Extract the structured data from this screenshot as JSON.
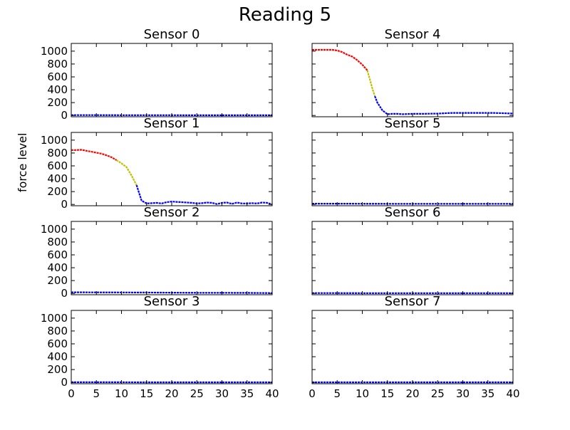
{
  "figure": {
    "title": "Reading 5",
    "ylabel": "force level"
  },
  "chart_data": [
    {
      "type": "line",
      "title": "Sensor 0",
      "xlim": [
        0,
        40
      ],
      "ylim": [
        -20,
        1120
      ],
      "yticks": [
        0,
        200,
        400,
        600,
        800,
        1000
      ],
      "xticks": [
        0,
        5,
        10,
        15,
        20,
        25,
        30,
        35,
        40
      ],
      "show_xticklabels": false,
      "show_yticklabels": true,
      "series": [
        {
          "color": "#0000ff",
          "x": [
            0,
            5,
            10,
            15,
            20,
            25,
            30,
            35,
            40
          ],
          "y": [
            5,
            5,
            4,
            4,
            4,
            3,
            3,
            3,
            3
          ]
        }
      ]
    },
    {
      "type": "line",
      "title": "Sensor 1",
      "xlim": [
        0,
        40
      ],
      "ylim": [
        -20,
        1120
      ],
      "yticks": [
        0,
        200,
        400,
        600,
        800,
        1000
      ],
      "xticks": [
        0,
        5,
        10,
        15,
        20,
        25,
        30,
        35,
        40
      ],
      "show_xticklabels": false,
      "show_yticklabels": true,
      "series": [
        {
          "color": "#ff0000",
          "x": [
            0,
            1,
            2,
            3,
            4,
            5,
            6,
            7,
            8,
            9
          ],
          "y": [
            845,
            845,
            850,
            835,
            820,
            805,
            790,
            765,
            735,
            690
          ]
        },
        {
          "color": "#bfbf00",
          "x": [
            9,
            10,
            11,
            12,
            13
          ],
          "y": [
            690,
            640,
            580,
            450,
            300
          ]
        },
        {
          "color": "#0000ff",
          "x": [
            13,
            14,
            15,
            16,
            17,
            18,
            19,
            20,
            21,
            22,
            23,
            24,
            25,
            26,
            27,
            28,
            29,
            30,
            31,
            32,
            33,
            34,
            35,
            36,
            37,
            38,
            39,
            40
          ],
          "y": [
            300,
            60,
            15,
            20,
            25,
            15,
            35,
            45,
            40,
            35,
            30,
            25,
            15,
            20,
            30,
            25,
            5,
            25,
            30,
            10,
            30,
            15,
            15,
            20,
            15,
            30,
            25,
            0
          ]
        }
      ]
    },
    {
      "type": "line",
      "title": "Sensor 2",
      "xlim": [
        0,
        40
      ],
      "ylim": [
        -20,
        1120
      ],
      "yticks": [
        0,
        200,
        400,
        600,
        800,
        1000
      ],
      "xticks": [
        0,
        5,
        10,
        15,
        20,
        25,
        30,
        35,
        40
      ],
      "show_xticklabels": false,
      "show_yticklabels": true,
      "series": [
        {
          "color": "#0000ff",
          "x": [
            0,
            5,
            10,
            15,
            20,
            25,
            30,
            35,
            40
          ],
          "y": [
            18,
            16,
            15,
            14,
            12,
            10,
            10,
            9,
            6
          ]
        }
      ]
    },
    {
      "type": "line",
      "title": "Sensor 3",
      "xlim": [
        0,
        40
      ],
      "ylim": [
        -20,
        1120
      ],
      "yticks": [
        0,
        200,
        400,
        600,
        800,
        1000
      ],
      "xticks": [
        0,
        5,
        10,
        15,
        20,
        25,
        30,
        35,
        40
      ],
      "show_xticklabels": true,
      "show_yticklabels": true,
      "series": [
        {
          "color": "#0000ff",
          "x": [
            0,
            5,
            10,
            15,
            20,
            25,
            30,
            35,
            40
          ],
          "y": [
            3,
            3,
            3,
            2,
            2,
            2,
            2,
            2,
            2
          ]
        }
      ]
    },
    {
      "type": "line",
      "title": "Sensor 4",
      "xlim": [
        0,
        40
      ],
      "ylim": [
        -20,
        1120
      ],
      "yticks": [
        0,
        200,
        400,
        600,
        800,
        1000
      ],
      "xticks": [
        0,
        5,
        10,
        15,
        20,
        25,
        30,
        35,
        40
      ],
      "show_xticklabels": false,
      "show_yticklabels": false,
      "series": [
        {
          "color": "#ff0000",
          "x": [
            0,
            1,
            2,
            3,
            4,
            5,
            6,
            7,
            8,
            9,
            10,
            11
          ],
          "y": [
            1020,
            1020,
            1020,
            1020,
            1020,
            1010,
            985,
            945,
            915,
            860,
            790,
            700
          ]
        },
        {
          "color": "#bfbf00",
          "x": [
            11,
            11.5,
            12,
            12.5
          ],
          "y": [
            700,
            560,
            420,
            300
          ]
        },
        {
          "color": "#0000ff",
          "x": [
            12.5,
            13,
            14,
            15,
            16,
            17,
            18,
            20,
            22,
            25,
            28,
            30,
            33,
            36,
            38,
            40
          ],
          "y": [
            300,
            200,
            80,
            20,
            25,
            25,
            20,
            25,
            25,
            30,
            40,
            40,
            40,
            40,
            35,
            30
          ]
        }
      ]
    },
    {
      "type": "line",
      "title": "Sensor 5",
      "xlim": [
        0,
        40
      ],
      "ylim": [
        -20,
        1120
      ],
      "yticks": [
        0,
        200,
        400,
        600,
        800,
        1000
      ],
      "xticks": [
        0,
        5,
        10,
        15,
        20,
        25,
        30,
        35,
        40
      ],
      "show_xticklabels": false,
      "show_yticklabels": false,
      "series": [
        {
          "color": "#0000ff",
          "x": [
            0,
            5,
            10,
            15,
            20,
            25,
            30,
            35,
            40
          ],
          "y": [
            12,
            12,
            11,
            10,
            10,
            10,
            10,
            10,
            10
          ]
        }
      ]
    },
    {
      "type": "line",
      "title": "Sensor 6",
      "xlim": [
        0,
        40
      ],
      "ylim": [
        -20,
        1120
      ],
      "yticks": [
        0,
        200,
        400,
        600,
        800,
        1000
      ],
      "xticks": [
        0,
        5,
        10,
        15,
        20,
        25,
        30,
        35,
        40
      ],
      "show_xticklabels": false,
      "show_yticklabels": false,
      "series": [
        {
          "color": "#0000ff",
          "x": [
            0,
            5,
            10,
            15,
            20,
            25,
            30,
            35,
            40
          ],
          "y": [
            5,
            5,
            4,
            4,
            4,
            4,
            4,
            4,
            4
          ]
        }
      ]
    },
    {
      "type": "line",
      "title": "Sensor 7",
      "xlim": [
        0,
        40
      ],
      "ylim": [
        -20,
        1120
      ],
      "yticks": [
        0,
        200,
        400,
        600,
        800,
        1000
      ],
      "xticks": [
        0,
        5,
        10,
        15,
        20,
        25,
        30,
        35,
        40
      ],
      "show_xticklabels": true,
      "show_yticklabels": false,
      "series": [
        {
          "color": "#0000ff",
          "x": [
            0,
            5,
            10,
            15,
            20,
            25,
            30,
            35,
            40
          ],
          "y": [
            2,
            2,
            2,
            2,
            2,
            2,
            2,
            2,
            2
          ]
        }
      ]
    }
  ]
}
